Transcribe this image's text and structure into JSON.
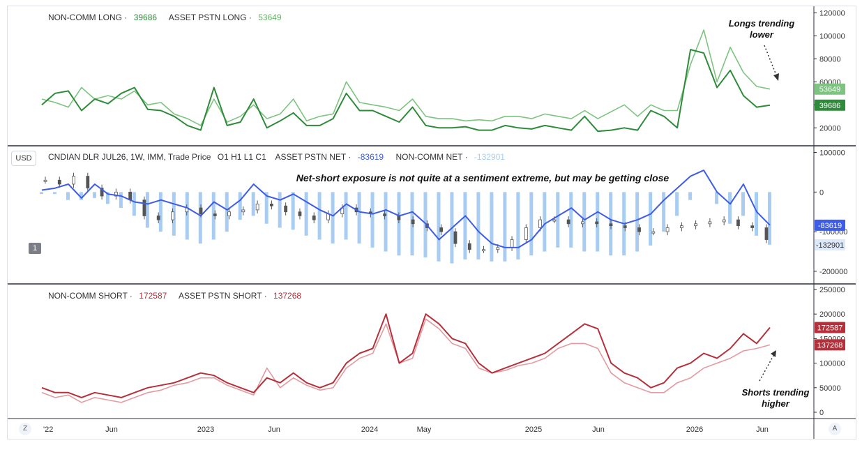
{
  "legend_top": {
    "noncomm_long_label": "NON-COMM LONG",
    "noncomm_long_value": "39686",
    "asset_long_label": "ASSET PSTN LONG",
    "asset_long_value": "53649"
  },
  "legend_mid": {
    "symbol": "CNDIAN DLR JUL26, 1W, IMM, Trade Price",
    "ohlc": "O1  H1  L1  C1",
    "asset_net_label": "ASSET PSTN NET",
    "asset_net_value": "-83619",
    "noncomm_net_label": "NON-COMM NET",
    "noncomm_net_value": "-132901"
  },
  "legend_bot": {
    "noncomm_short_label": "NON-COMM SHORT",
    "noncomm_short_value": "172587",
    "asset_short_label": "ASSET PSTN SHORT",
    "asset_short_value": "137268"
  },
  "ui": {
    "currency_button": "USD",
    "pane_number": "1",
    "left_corner": "Z",
    "right_corner": "A",
    "separator": "·"
  },
  "annotations": {
    "longs_line1": "Longs trending",
    "longs_line2": "lower",
    "shorts_line1": "Shorts trending",
    "shorts_line2": "higher",
    "net_title": "Net-short exposure is not quite at a sentiment extreme, but may be getting close"
  },
  "colors": {
    "long_dark": "#2e8b3a",
    "long_light": "#7cc47f",
    "net_blue": "#3d5ce8",
    "net_light": "#a9cdf2",
    "short_dark": "#b5303a",
    "short_light": "#e39aa0",
    "candle": "#555555"
  },
  "chart_data": [
    {
      "type": "line",
      "pane": "top",
      "x_ticks": [
        "'22",
        "Jun",
        "2023",
        "Jun",
        "2024",
        "May",
        "2025",
        "Jun",
        "2026",
        "Jun"
      ],
      "yticks": [
        20000,
        40000,
        60000,
        80000,
        100000,
        120000
      ],
      "ylim": [
        5000,
        125000
      ],
      "series": [
        {
          "name": "NON-COMM LONG",
          "last": 39686,
          "values": [
            40000,
            50000,
            52000,
            35000,
            45000,
            41000,
            50000,
            55000,
            36000,
            35000,
            30000,
            22000,
            18000,
            55000,
            22000,
            25000,
            45000,
            20000,
            26000,
            33000,
            22000,
            22000,
            28000,
            50000,
            35000,
            35000,
            30000,
            25000,
            38000,
            22000,
            20000,
            20000,
            21000,
            18000,
            18000,
            22000,
            20000,
            19000,
            22000,
            20000,
            18000,
            30000,
            17000,
            18000,
            20000,
            18000,
            35000,
            30000,
            20000,
            88000,
            85000,
            55000,
            70000,
            48000,
            38000,
            39686
          ]
        },
        {
          "name": "ASSET PSTN LONG",
          "last": 53649,
          "values": [
            45000,
            42000,
            38000,
            55000,
            45000,
            48000,
            45000,
            52000,
            40000,
            42000,
            32000,
            28000,
            22000,
            45000,
            25000,
            30000,
            40000,
            28000,
            32000,
            45000,
            26000,
            30000,
            32000,
            60000,
            42000,
            40000,
            38000,
            35000,
            45000,
            30000,
            28000,
            28000,
            26000,
            27000,
            26000,
            30000,
            30000,
            28000,
            32000,
            30000,
            28000,
            35000,
            28000,
            34000,
            40000,
            30000,
            40000,
            35000,
            35000,
            75000,
            105000,
            60000,
            90000,
            68000,
            56000,
            53649
          ]
        }
      ]
    },
    {
      "type": "line",
      "pane": "middle",
      "yticks": [
        100000,
        0,
        -100000,
        -200000
      ],
      "ylim": [
        -230000,
        115000
      ],
      "series": [
        {
          "name": "ASSET PSTN NET",
          "last": -83619,
          "values": [
            5000,
            10000,
            20000,
            -15000,
            20000,
            -5000,
            -10000,
            -25000,
            -30000,
            -20000,
            -30000,
            -40000,
            -60000,
            -25000,
            -45000,
            -20000,
            20000,
            -10000,
            -20000,
            -5000,
            -25000,
            -45000,
            -60000,
            -30000,
            -50000,
            -55000,
            -45000,
            -60000,
            -50000,
            -80000,
            -120000,
            -90000,
            -60000,
            -100000,
            -130000,
            -140000,
            -140000,
            -120000,
            -80000,
            -60000,
            -40000,
            -70000,
            -50000,
            -70000,
            -80000,
            -70000,
            -55000,
            -20000,
            10000,
            40000,
            55000,
            0,
            -30000,
            20000,
            -50000,
            -83619
          ]
        },
        {
          "name": "NON-COMM NET",
          "last": -132901,
          "values": [
            -5000,
            -5000,
            -20000,
            -20000,
            -15000,
            -30000,
            -40000,
            -60000,
            -90000,
            -100000,
            -110000,
            -120000,
            -130000,
            -120000,
            -100000,
            -70000,
            -60000,
            -80000,
            -90000,
            -95000,
            -110000,
            -120000,
            -130000,
            -120000,
            -130000,
            -140000,
            -150000,
            -160000,
            -160000,
            -165000,
            -175000,
            -180000,
            -170000,
            -170000,
            -175000,
            -175000,
            -170000,
            -160000,
            -150000,
            -140000,
            -140000,
            -150000,
            -150000,
            -160000,
            -160000,
            -150000,
            -135000,
            -100000,
            -60000,
            -20000,
            0,
            -30000,
            -80000,
            -60000,
            -110000,
            -132901
          ]
        },
        {
          "name": "Trade Price (candles)",
          "values": [
            30000,
            20000,
            40000,
            10000,
            -10000,
            0,
            -20000,
            -60000,
            -70000,
            -50000,
            -40000,
            -55000,
            -60000,
            -50000,
            -45000,
            -30000,
            -35000,
            -50000,
            -60000,
            -70000,
            -55000,
            -40000,
            -50000,
            -55000,
            -60000,
            -70000,
            -80000,
            -90000,
            -100000,
            -130000,
            -145000,
            -145000,
            -140000,
            -120000,
            -90000,
            -70000,
            -70000,
            -80000,
            -75000,
            -80000,
            -85000,
            -90000,
            -100000,
            -100000,
            -90000,
            -85000,
            -80000,
            -75000,
            -70000,
            -85000,
            -90000,
            -120000
          ]
        }
      ]
    },
    {
      "type": "line",
      "pane": "bottom",
      "yticks": [
        0,
        50000,
        100000,
        150000,
        200000,
        250000
      ],
      "ylim": [
        -10000,
        260000
      ],
      "series": [
        {
          "name": "NON-COMM SHORT",
          "last": 172587,
          "values": [
            50000,
            40000,
            40000,
            30000,
            40000,
            35000,
            30000,
            40000,
            50000,
            55000,
            60000,
            70000,
            80000,
            75000,
            60000,
            50000,
            40000,
            70000,
            60000,
            80000,
            60000,
            50000,
            60000,
            100000,
            120000,
            130000,
            200000,
            100000,
            120000,
            200000,
            180000,
            150000,
            140000,
            100000,
            80000,
            90000,
            100000,
            110000,
            120000,
            140000,
            160000,
            180000,
            170000,
            100000,
            80000,
            70000,
            50000,
            60000,
            90000,
            100000,
            120000,
            110000,
            130000,
            160000,
            140000,
            172587
          ]
        },
        {
          "name": "ASSET PSTN SHORT",
          "last": 137268,
          "values": [
            40000,
            30000,
            35000,
            20000,
            30000,
            25000,
            20000,
            30000,
            40000,
            45000,
            55000,
            60000,
            70000,
            70000,
            55000,
            45000,
            35000,
            90000,
            50000,
            70000,
            55000,
            45000,
            50000,
            90000,
            110000,
            120000,
            180000,
            100000,
            110000,
            190000,
            170000,
            140000,
            130000,
            90000,
            80000,
            85000,
            95000,
            100000,
            110000,
            130000,
            140000,
            140000,
            130000,
            80000,
            60000,
            50000,
            40000,
            40000,
            60000,
            70000,
            90000,
            100000,
            110000,
            125000,
            130000,
            137268
          ]
        }
      ]
    }
  ]
}
